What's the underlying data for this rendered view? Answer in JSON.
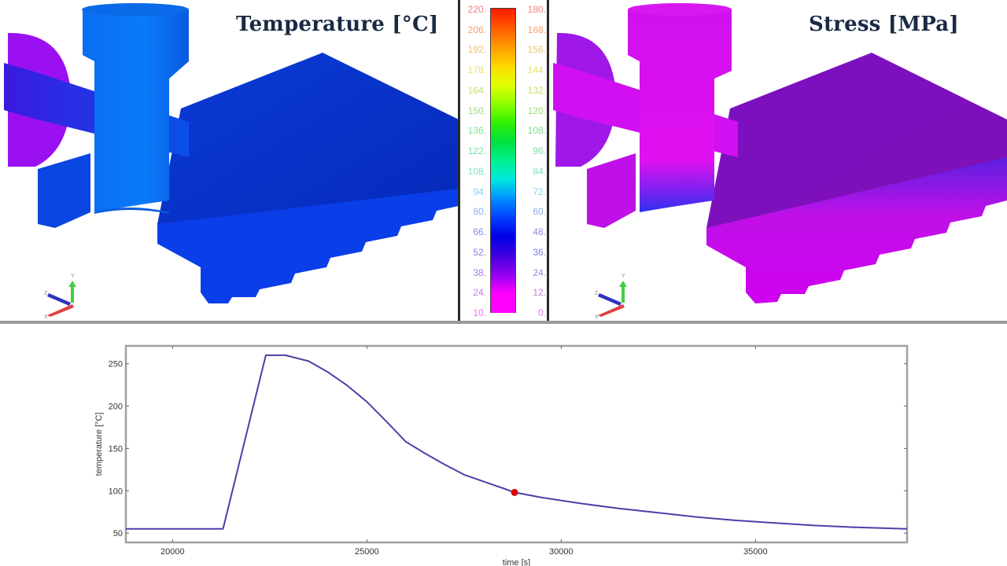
{
  "views": {
    "temperature": {
      "title": "Temperature [°C]"
    },
    "stress": {
      "title": "Stress [MPa]"
    }
  },
  "axis_triad": {
    "labels": [
      "Y",
      "Z",
      "X"
    ]
  },
  "legend": {
    "temperature_ticks": [
      "220.",
      "206.",
      "192.",
      "178.",
      "164.",
      "150.",
      "136.",
      "122.",
      "108.",
      "94.",
      "80.",
      "66.",
      "52.",
      "38.",
      "24.",
      "10."
    ],
    "stress_ticks": [
      "180.",
      "168.",
      "156.",
      "144.",
      "132.",
      "120.",
      "108.",
      "96.",
      "84.",
      "72.",
      "60.",
      "48.",
      "36.",
      "24.",
      "12.",
      "0."
    ],
    "tick_colors": [
      "#f08080",
      "#f4a070",
      "#e8c070",
      "#e6e070",
      "#c8e070",
      "#a0e080",
      "#80e090",
      "#80e0a8",
      "#80e0c0",
      "#80d8e8",
      "#88b0e8",
      "#8890e0",
      "#8080e0",
      "#a080e0",
      "#c080e0",
      "#e080e8"
    ],
    "band_colors": [
      "#ff1a00",
      "#ff5a00",
      "#ff9a00",
      "#ffd800",
      "#e0ff00",
      "#90ff00",
      "#30f000",
      "#00e040",
      "#00f090",
      "#00e8e0",
      "#0090ff",
      "#0040ff",
      "#0000e8",
      "#4000e0",
      "#9000f0",
      "#ff00ff"
    ]
  },
  "chart_data": {
    "type": "line",
    "title": "",
    "xlabel": "time [s]",
    "ylabel": "temperature [°C]",
    "xlim": [
      18800,
      38900
    ],
    "ylim": [
      39,
      271
    ],
    "xticks": [
      20000,
      25000,
      30000,
      35000
    ],
    "xtick_labels": [
      "20000",
      "25000",
      "30000",
      "35000"
    ],
    "yticks": [
      50,
      100,
      150,
      200,
      250
    ],
    "ytick_labels": [
      "50",
      "100",
      "150",
      "200",
      "250"
    ],
    "grid": false,
    "series": [
      {
        "name": "temperature",
        "color": "#4a40a8",
        "x": [
          18800,
          21300,
          22400,
          22900,
          23500,
          24000,
          24500,
          25000,
          25500,
          26000,
          26500,
          27000,
          27500,
          28000,
          28500,
          28800,
          29500,
          30500,
          31500,
          32500,
          33500,
          34500,
          35500,
          36500,
          37500,
          38900
        ],
        "y": [
          55,
          55,
          260,
          260,
          253,
          240,
          224,
          205,
          182,
          158,
          144,
          131,
          119,
          111,
          103,
          98,
          92,
          85,
          79,
          74,
          69,
          65,
          62,
          59,
          57,
          55
        ]
      }
    ],
    "marker": {
      "x": 28800,
      "y": 98,
      "color": "#e00000"
    }
  }
}
